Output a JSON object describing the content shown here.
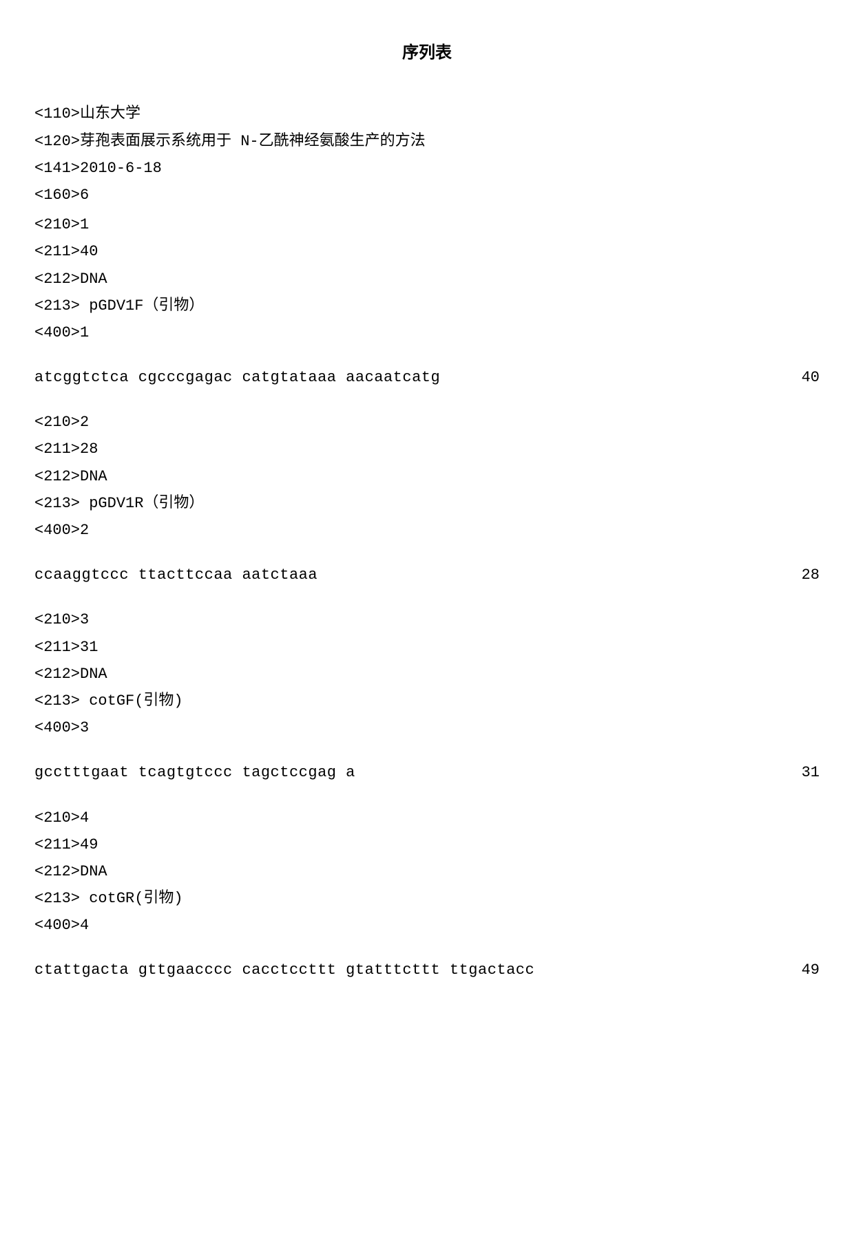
{
  "title": "序列表",
  "header": {
    "tag110": "<110>山东大学",
    "tag120": "<120>芽孢表面展示系统用于 N-乙酰神经氨酸生产的方法",
    "tag141": "<141>2010-6-18",
    "tag160": "<160>6"
  },
  "sequences": [
    {
      "tag210": "<210>1",
      "tag211": "<211>40",
      "tag212": "<212>DNA",
      "tag213": "<213> pGDV1F（引物）",
      "tag400": "<400>1",
      "sequence": "atcggtctca cgcccgagac catgtataaa aacaatcatg",
      "length": "40"
    },
    {
      "tag210": "<210>2",
      "tag211": "<211>28",
      "tag212": "<212>DNA",
      "tag213": "<213> pGDV1R（引物）",
      "tag400": "<400>2",
      "sequence": "ccaaggtccc ttacttccaa aatctaaa",
      "length": "28"
    },
    {
      "tag210": "<210>3",
      "tag211": "<211>31",
      "tag212": "<212>DNA",
      "tag213": "<213> cotGF(引物)",
      "tag400": "<400>3",
      "sequence": "gcctttgaat tcagtgtccc tagctccgag a",
      "length": "31"
    },
    {
      "tag210": "<210>4",
      "tag211": "<211>49",
      "tag212": "<212>DNA",
      "tag213": "<213> cotGR(引物)",
      "tag400": "<400>4",
      "sequence": "ctattgacta gttgaacccc cacctccttt gtatttcttt ttgactacc",
      "length": "49"
    }
  ]
}
